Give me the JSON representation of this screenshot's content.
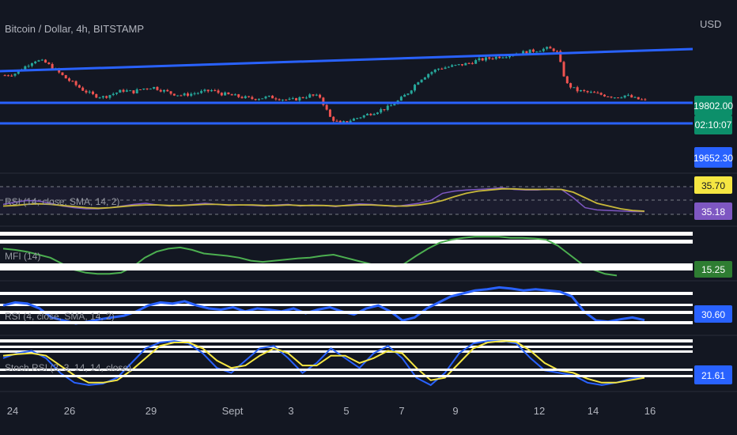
{
  "header": {
    "symbol_label": "Bitcoin / Dollar, 4h, BITSTAMP",
    "currency": "USD"
  },
  "price_tags": {
    "last_price": "19802.00",
    "countdown": "02:10:07",
    "level": "19652.30"
  },
  "indicators": [
    {
      "key": "rsi14",
      "label": "RSI (14, close, SMA, 14, 2)",
      "value_tags": [
        "35.70",
        "35.18"
      ]
    },
    {
      "key": "mfi",
      "label": "MFI (14)",
      "value_tags": [
        "15.25"
      ]
    },
    {
      "key": "rsi4",
      "label": "RSI (4, close, SMA, 14, 2)",
      "value_tags": [
        "30.60"
      ]
    },
    {
      "key": "stoch",
      "label": "Stoch RSI (3, 3, 14, 14, close)",
      "value_tags": [
        "21.61"
      ]
    }
  ],
  "x_axis": {
    "ticks": [
      "24",
      "26",
      "29",
      "Sept",
      "3",
      "5",
      "7",
      "9",
      "12",
      "14",
      "16"
    ]
  },
  "colors": {
    "background": "#131722",
    "up": "#26a69a",
    "down": "#ef5350",
    "trendline": "#2962ff",
    "rsi_line": "#7e57c2",
    "rsi_ma": "#c8b83a",
    "mfi_line": "#4caf50",
    "stoch_k": "#2962ff",
    "stoch_d": "#f5e642",
    "tag_last": "#0c8f6a",
    "tag_level": "#2962ff",
    "tag_yellow": "#f5e642",
    "tag_purple": "#7e57c2",
    "tag_green": "#2e7d32"
  },
  "chart_data": {
    "type": "candlestick",
    "price_path": [
      19950,
      19960,
      20000,
      20040,
      20030,
      19990,
      19940,
      19900,
      19860,
      19830,
      19820,
      19840,
      19860,
      19850,
      19870,
      19880,
      19860,
      19840,
      19830,
      19840,
      19850,
      19860,
      19840,
      19830,
      19820,
      19810,
      19815,
      19820,
      19810,
      19800,
      19815,
      19830,
      19820,
      19700,
      19660,
      19680,
      19700,
      19720,
      19740,
      19760,
      19800,
      19850,
      19920,
      19960,
      19990,
      20000,
      20010,
      20020,
      20040,
      20050,
      20060,
      20070,
      20080,
      20090,
      20100,
      20110,
      20100,
      19900,
      19860,
      19850,
      19840,
      19830,
      19820,
      19830,
      19810,
      19800
    ],
    "rsi14": [
      48,
      52,
      55,
      54,
      50,
      45,
      42,
      40,
      40,
      42,
      45,
      48,
      50,
      47,
      45,
      46,
      48,
      50,
      48,
      46,
      47,
      46,
      45,
      47,
      48,
      45,
      47,
      46,
      44,
      47,
      49,
      48,
      46,
      44,
      47,
      50,
      55,
      68,
      72,
      74,
      75,
      76,
      78,
      75,
      74,
      74,
      76,
      75,
      60,
      42,
      38,
      37,
      36,
      35,
      35
    ],
    "rsi14_ma": [
      45,
      46,
      48,
      49,
      48,
      46,
      44,
      42,
      41,
      42,
      44,
      46,
      47,
      47,
      46,
      46,
      47,
      48,
      48,
      47,
      47,
      47,
      46,
      46,
      47,
      46,
      46,
      46,
      45,
      46,
      47,
      47,
      46,
      45,
      45,
      47,
      50,
      55,
      62,
      68,
      72,
      74,
      76,
      76,
      75,
      75,
      75,
      75,
      70,
      60,
      50,
      45,
      40,
      37,
      35.7
    ],
    "mfi": [
      60,
      58,
      55,
      50,
      45,
      35,
      25,
      20,
      18,
      18,
      20,
      30,
      45,
      55,
      60,
      62,
      58,
      52,
      50,
      48,
      45,
      40,
      38,
      40,
      42,
      44,
      45,
      48,
      50,
      45,
      40,
      35,
      30,
      28,
      35,
      48,
      60,
      70,
      75,
      78,
      80,
      80,
      80,
      78,
      78,
      77,
      75,
      65,
      50,
      35,
      25,
      18,
      15.25
    ],
    "rsi4": [
      55,
      60,
      58,
      50,
      35,
      30,
      25,
      28,
      32,
      35,
      38,
      45,
      55,
      60,
      58,
      62,
      55,
      50,
      48,
      52,
      45,
      50,
      48,
      45,
      50,
      42,
      48,
      52,
      45,
      40,
      50,
      55,
      45,
      30,
      35,
      50,
      60,
      70,
      75,
      80,
      82,
      85,
      83,
      80,
      82,
      80,
      78,
      70,
      45,
      30,
      28,
      32,
      35,
      30.6
    ],
    "stoch_k": [
      60,
      70,
      75,
      60,
      30,
      10,
      5,
      8,
      20,
      50,
      80,
      92,
      95,
      90,
      70,
      40,
      30,
      55,
      80,
      85,
      60,
      30,
      50,
      80,
      60,
      40,
      70,
      85,
      60,
      20,
      5,
      30,
      70,
      90,
      95,
      95,
      90,
      60,
      35,
      30,
      25,
      10,
      5,
      10,
      18,
      21.61
    ],
    "stoch_d": [
      65,
      68,
      70,
      65,
      45,
      25,
      10,
      10,
      15,
      35,
      60,
      85,
      92,
      92,
      80,
      55,
      40,
      45,
      65,
      80,
      70,
      45,
      45,
      65,
      65,
      50,
      60,
      75,
      70,
      40,
      15,
      20,
      50,
      80,
      92,
      95,
      93,
      75,
      50,
      35,
      30,
      18,
      10,
      10,
      15,
      20
    ]
  }
}
